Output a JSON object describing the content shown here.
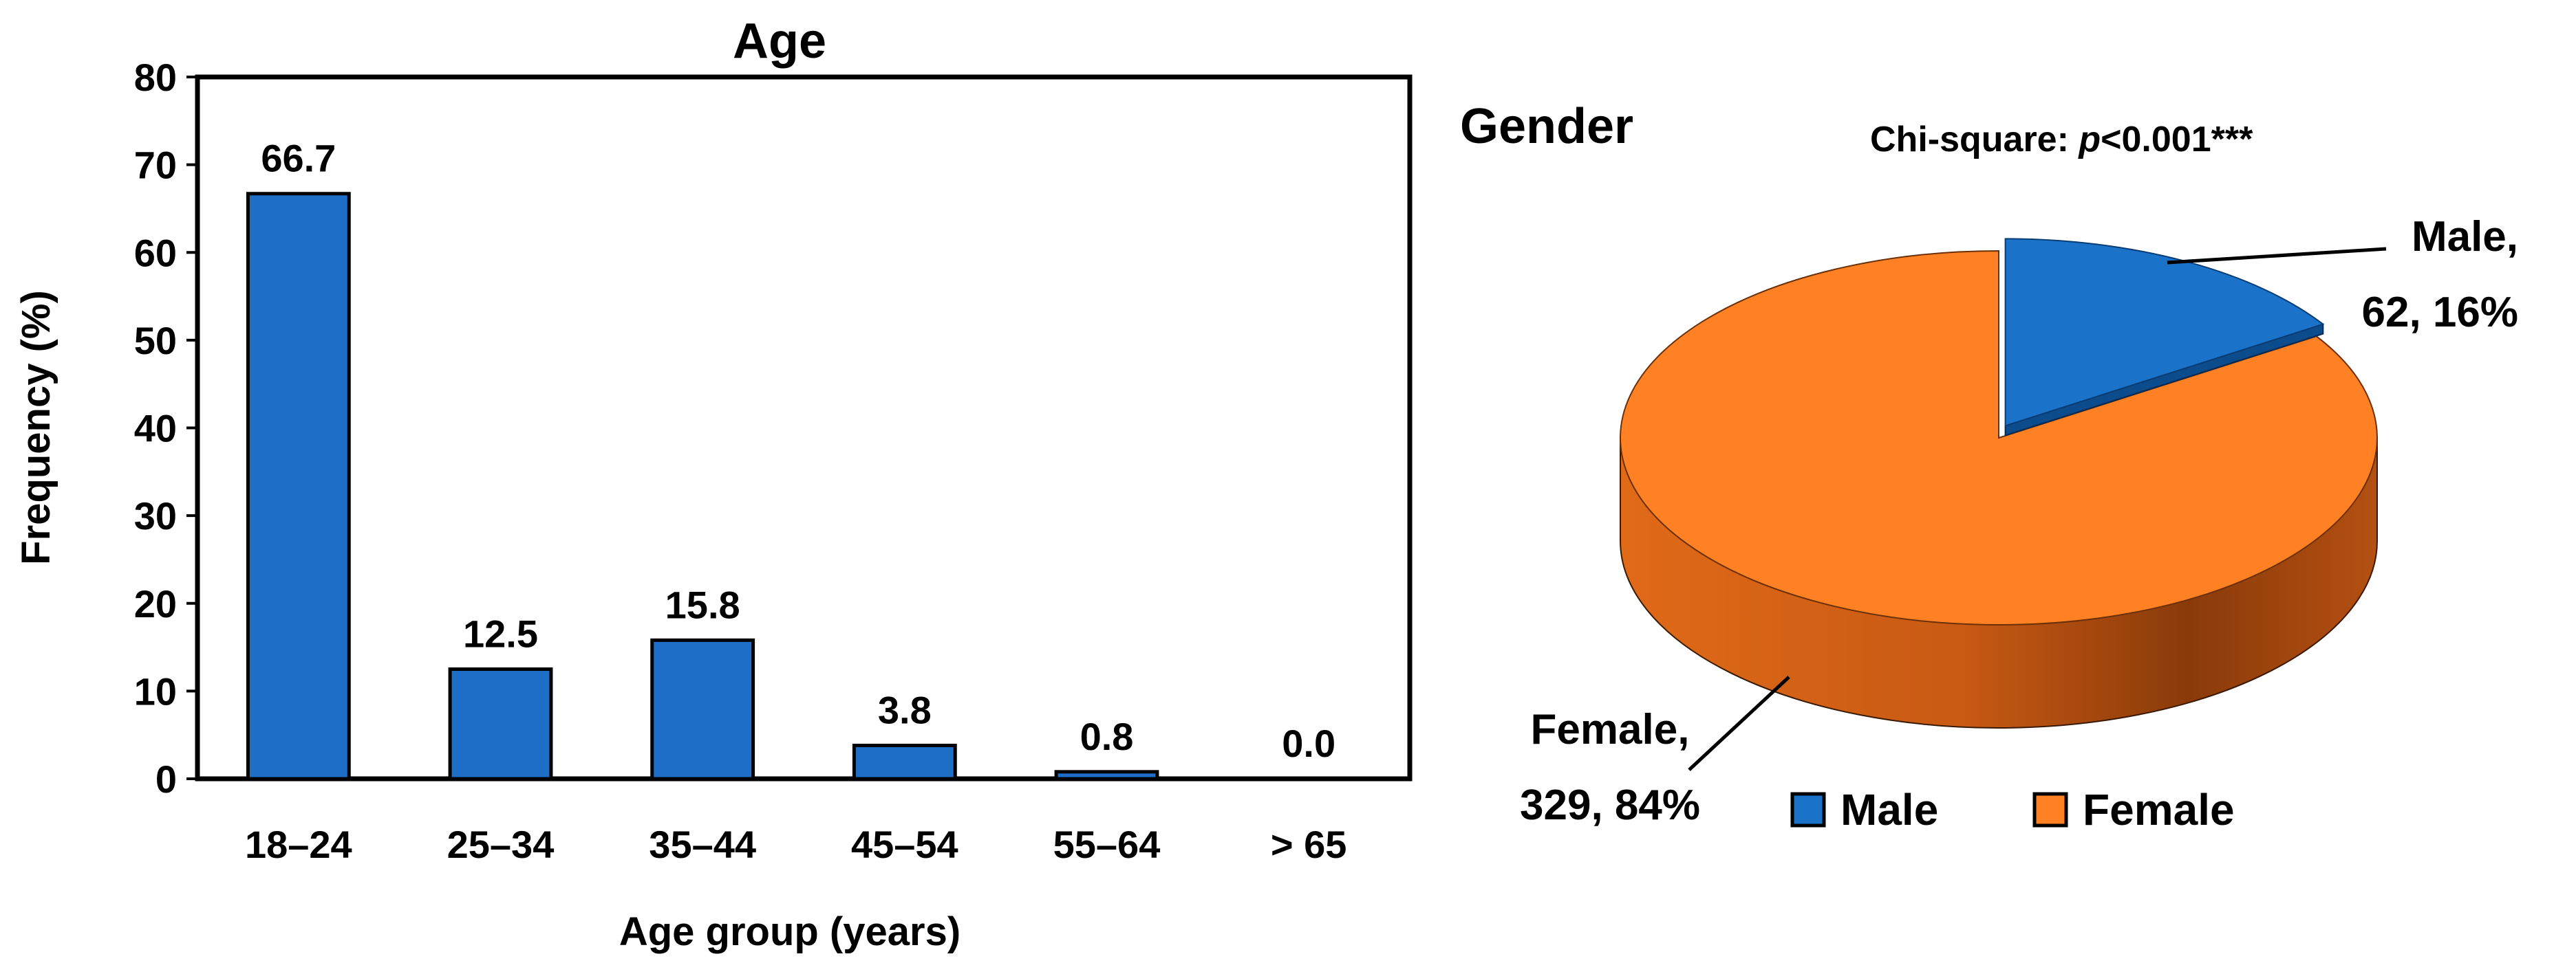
{
  "chart_data": [
    {
      "type": "bar",
      "title": "Age",
      "xlabel": "Age group (years)",
      "ylabel": "Frequency (%)",
      "ylim": [
        0,
        80
      ],
      "yticks": [
        0,
        10,
        20,
        30,
        40,
        50,
        60,
        70,
        80
      ],
      "categories": [
        "18–24",
        "25–34",
        "35–44",
        "45–54",
        "55–64",
        "> 65"
      ],
      "values": [
        66.7,
        12.5,
        15.8,
        3.8,
        0.8,
        0.0
      ],
      "value_labels": [
        "66.7",
        "12.5",
        "15.8",
        "3.8",
        "0.8",
        "0.0"
      ],
      "grid": false,
      "colors": {
        "bar": "#1f6fc9",
        "stroke": "#000000"
      }
    },
    {
      "type": "pie",
      "title": "Gender",
      "annotation": {
        "prefix": "Chi-square: ",
        "italic": "p",
        "suffix": "<0.001***"
      },
      "slices": [
        {
          "name": "Male",
          "count": 62,
          "percent": 16,
          "label_line1": "Male,",
          "label_line2": "62, 16%",
          "color": "#1a73c9",
          "side_color": "#0d4c8c"
        },
        {
          "name": "Female",
          "count": 329,
          "percent": 84,
          "label_line1": "Female,",
          "label_line2": "329, 84%",
          "color": "#ff8124",
          "side_color": "#b85212"
        }
      ],
      "legend": {
        "position": "bottom",
        "entries": [
          "Male",
          "Female"
        ]
      }
    }
  ]
}
